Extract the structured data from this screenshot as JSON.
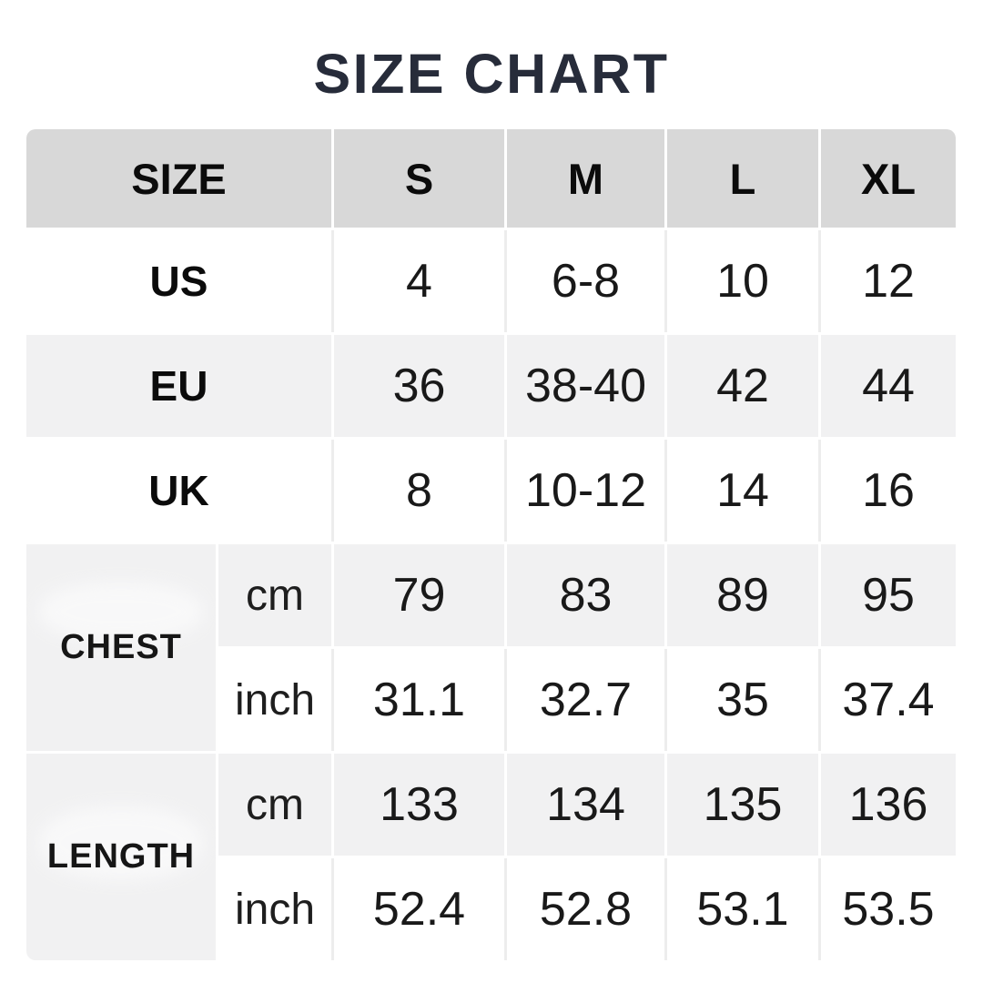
{
  "title": "SIZE CHART",
  "colors": {
    "title_text": "#272c3a",
    "header_bg": "#d8d8d8",
    "stripe_bg": "#f1f1f2",
    "white_bg": "#ffffff",
    "body_text": "#191919",
    "divider_on_white": "#ededed",
    "divider_on_gray": "#ffffff"
  },
  "table": {
    "header": [
      "SIZE",
      "S",
      "M",
      "L",
      "XL"
    ],
    "size_rows": [
      {
        "label": "US",
        "values": [
          "4",
          "6-8",
          "10",
          "12"
        ]
      },
      {
        "label": "EU",
        "values": [
          "36",
          "38-40",
          "42",
          "44"
        ]
      },
      {
        "label": "UK",
        "values": [
          "8",
          "10-12",
          "14",
          "16"
        ]
      }
    ],
    "sections": [
      {
        "label": "CHEST",
        "rows": [
          {
            "unit": "cm",
            "values": [
              "79",
              "83",
              "89",
              "95"
            ]
          },
          {
            "unit": "inch",
            "values": [
              "31.1",
              "32.7",
              "35",
              "37.4"
            ]
          }
        ]
      },
      {
        "label": "LENGTH",
        "rows": [
          {
            "unit": "cm",
            "values": [
              "133",
              "134",
              "135",
              "136"
            ]
          },
          {
            "unit": "inch",
            "values": [
              "52.4",
              "52.8",
              "53.1",
              "53.5"
            ]
          }
        ]
      }
    ]
  },
  "chart_data": {
    "type": "table",
    "title": "SIZE CHART",
    "columns": [
      "SIZE",
      "S",
      "M",
      "L",
      "XL"
    ],
    "rows": [
      [
        "US",
        "4",
        "6-8",
        "10",
        "12"
      ],
      [
        "EU",
        "36",
        "38-40",
        "42",
        "44"
      ],
      [
        "UK",
        "8",
        "10-12",
        "14",
        "16"
      ],
      [
        "CHEST cm",
        "79",
        "83",
        "89",
        "95"
      ],
      [
        "CHEST inch",
        "31.1",
        "32.7",
        "35",
        "37.4"
      ],
      [
        "LENGTH cm",
        "133",
        "134",
        "135",
        "136"
      ],
      [
        "LENGTH inch",
        "52.4",
        "52.8",
        "53.1",
        "53.5"
      ]
    ]
  }
}
